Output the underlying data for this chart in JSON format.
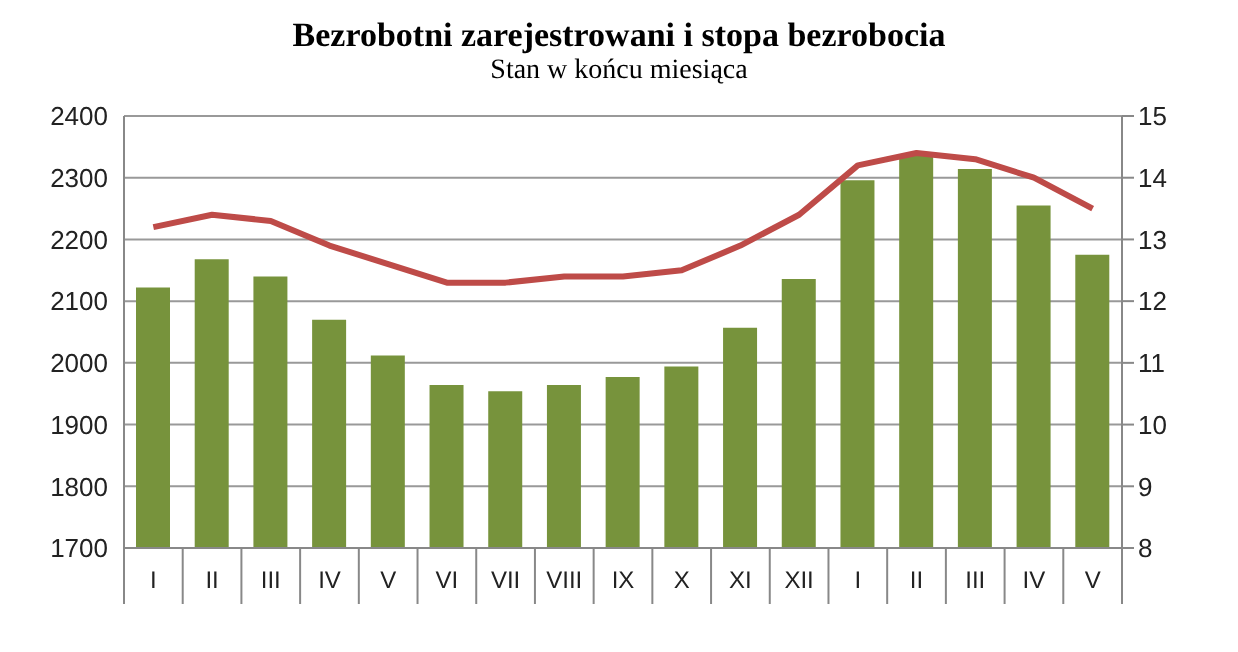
{
  "chart_data": {
    "type": "bar",
    "title": "Bezrobotni zarejestrowani i stopa bezrobocia",
    "subtitle": "Stan w końcu miesiąca",
    "categories": [
      "I",
      "II",
      "III",
      "IV",
      "V",
      "VI",
      "VII",
      "VIII",
      "IX",
      "X",
      "XI",
      "XII",
      "I",
      "II",
      "III",
      "IV",
      "V"
    ],
    "series": [
      {
        "color": "#77933c",
        "values": [
          2122,
          2168,
          2140,
          2070,
          2012,
          1964,
          1954,
          1964,
          1977,
          1994,
          2057,
          2136,
          2296,
          2336,
          2314,
          2255,
          2175
        ]
      },
      {
        "type": "line",
        "axis": "y2",
        "color": "#be4b48",
        "values": [
          13.2,
          13.4,
          13.3,
          12.9,
          12.6,
          12.3,
          12.3,
          12.4,
          12.4,
          12.5,
          12.9,
          13.4,
          14.2,
          14.4,
          14.3,
          14.0,
          13.5
        ]
      }
    ],
    "ylim": [
      1700,
      2400
    ],
    "yticks": [
      1700,
      1800,
      1900,
      2000,
      2100,
      2200,
      2300,
      2400
    ],
    "y2lim": [
      8,
      15
    ],
    "y2ticks": [
      8,
      9,
      10,
      11,
      12,
      13,
      14,
      15
    ],
    "grid": "y",
    "legend": false,
    "marker": "none"
  }
}
